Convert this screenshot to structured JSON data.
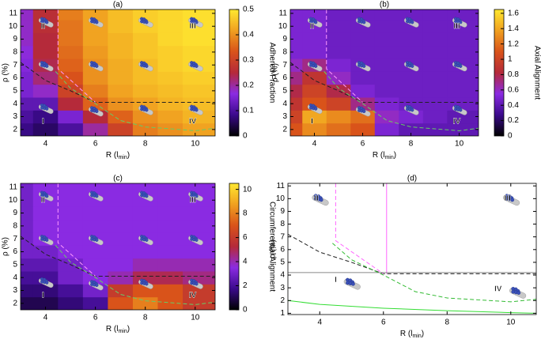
{
  "chart_data": [
    {
      "type": "heatmap",
      "title": "(a)",
      "xlabel": [
        "R (l",
        "min",
        ")"
      ],
      "ylabel": "ρ (%)",
      "colorbar_label": "Adhered Fraction",
      "colormap": [
        "#000000",
        "#3b0a8c",
        "#8a2be2",
        "#b52a3a",
        "#d9531a",
        "#f0a020",
        "#ffe830"
      ],
      "xlim": [
        3,
        10.8
      ],
      "ylim": [
        1.5,
        11.3
      ],
      "xticks": [
        4,
        6,
        8,
        10
      ],
      "yticks": [
        2,
        3,
        4,
        5,
        6,
        7,
        8,
        9,
        10,
        11
      ],
      "clim": [
        0,
        0.5
      ],
      "cticks": [
        0,
        0.1,
        0.2,
        0.3,
        0.4,
        0.5
      ],
      "xedges": [
        3,
        3.5,
        4.5,
        5.5,
        6.5,
        7.5,
        8.5,
        9.5,
        10.8
      ],
      "yedges": [
        1.5,
        2.5,
        3.5,
        4.5,
        5.5,
        6.5,
        7.5,
        8.5,
        9.5,
        10.5,
        11.3
      ],
      "values": [
        [
          0.08,
          0.06,
          0.1,
          0.2,
          0.3,
          0.38,
          0.4,
          0.42
        ],
        [
          0.1,
          0.08,
          0.15,
          0.25,
          0.35,
          0.4,
          0.42,
          0.44
        ],
        [
          0.12,
          0.12,
          0.25,
          0.35,
          0.4,
          0.42,
          0.44,
          0.45
        ],
        [
          0.15,
          0.18,
          0.3,
          0.38,
          0.42,
          0.44,
          0.45,
          0.46
        ],
        [
          0.15,
          0.22,
          0.33,
          0.4,
          0.43,
          0.45,
          0.46,
          0.47
        ],
        [
          0.16,
          0.24,
          0.35,
          0.4,
          0.43,
          0.45,
          0.47,
          0.48
        ],
        [
          0.17,
          0.25,
          0.36,
          0.41,
          0.44,
          0.46,
          0.47,
          0.48
        ],
        [
          0.18,
          0.25,
          0.37,
          0.42,
          0.44,
          0.46,
          0.48,
          0.49
        ],
        [
          0.18,
          0.26,
          0.37,
          0.42,
          0.45,
          0.47,
          0.48,
          0.49
        ],
        [
          0.18,
          0.26,
          0.38,
          0.42,
          0.45,
          0.47,
          0.48,
          0.49
        ]
      ],
      "lines": [
        {
          "color": "#222222",
          "dash": true,
          "x": [
            3,
            4,
            5,
            6,
            10.8
          ],
          "y": [
            7.2,
            5.8,
            5,
            4.1,
            4.1
          ]
        },
        {
          "color": "#ff99ff",
          "dash": true,
          "x": [
            4.5,
            4.5,
            6
          ],
          "y": [
            11.3,
            6.7,
            4.1
          ]
        },
        {
          "color": "#66cc66",
          "dash": true,
          "x": [
            4.4,
            5,
            6,
            7,
            8,
            10,
            10.8
          ],
          "y": [
            6.5,
            5.2,
            4,
            2.7,
            2.2,
            1.9,
            2.1
          ]
        }
      ],
      "annotations": [
        {
          "text": "II",
          "x": 3.9,
          "y": 10
        },
        {
          "text": "III",
          "x": 9.9,
          "y": 10
        },
        {
          "text": "I",
          "x": 3.9,
          "y": 2.6
        },
        {
          "text": "IV",
          "x": 9.9,
          "y": 2.6
        }
      ]
    },
    {
      "type": "heatmap",
      "title": "(b)",
      "xlabel": [
        "R (l",
        "min",
        ")"
      ],
      "ylabel": "ρ (%)",
      "colorbar_label": "Axial Alignment",
      "colormap": [
        "#000000",
        "#3b0a8c",
        "#8a2be2",
        "#b52a3a",
        "#d9531a",
        "#f0a020",
        "#ffe830"
      ],
      "xlim": [
        3,
        10.8
      ],
      "ylim": [
        1.5,
        11.3
      ],
      "xticks": [
        4,
        6,
        8,
        10
      ],
      "yticks": [
        2,
        3,
        4,
        5,
        6,
        7,
        8,
        9,
        10,
        11
      ],
      "clim": [
        0,
        1.65
      ],
      "cticks": [
        0,
        0.2,
        0.4,
        0.6,
        0.8,
        1,
        1.2,
        1.4,
        1.6
      ],
      "xedges": [
        3,
        3.5,
        4.5,
        5.5,
        6.5,
        7.5,
        8.5,
        9.5,
        10.8
      ],
      "yedges": [
        1.5,
        2.5,
        3.5,
        4.5,
        5.5,
        6.5,
        7.5,
        8.5,
        9.5,
        10.5,
        11.3
      ],
      "values": [
        [
          1.1,
          1.3,
          1.2,
          1.1,
          0.5,
          0.4,
          0.4,
          0.4
        ],
        [
          1.0,
          1.4,
          1.3,
          1.2,
          0.6,
          0.5,
          0.45,
          0.4
        ],
        [
          0.9,
          1.1,
          1.0,
          0.7,
          0.5,
          0.45,
          0.45,
          0.45
        ],
        [
          0.8,
          1.0,
          0.8,
          0.5,
          0.45,
          0.45,
          0.45,
          0.45
        ],
        [
          0.7,
          0.9,
          0.6,
          0.45,
          0.45,
          0.45,
          0.45,
          0.45
        ],
        [
          0.6,
          0.7,
          0.5,
          0.45,
          0.45,
          0.45,
          0.45,
          0.45
        ],
        [
          0.5,
          0.5,
          0.45,
          0.45,
          0.45,
          0.45,
          0.45,
          0.45
        ],
        [
          0.5,
          0.5,
          0.45,
          0.45,
          0.45,
          0.45,
          0.45,
          0.45
        ],
        [
          0.5,
          0.5,
          0.45,
          0.45,
          0.45,
          0.45,
          0.45,
          0.45
        ],
        [
          0.5,
          0.5,
          0.45,
          0.45,
          0.45,
          0.45,
          0.45,
          0.45
        ]
      ],
      "lines": [
        {
          "color": "#222222",
          "dash": true,
          "x": [
            3,
            4,
            5,
            6,
            10.8
          ],
          "y": [
            7.2,
            5.8,
            5,
            4.1,
            4.1
          ]
        },
        {
          "color": "#ff99ff",
          "dash": true,
          "x": [
            4.5,
            4.5,
            6
          ],
          "y": [
            11.3,
            6.7,
            4.1
          ]
        },
        {
          "color": "#66cc66",
          "dash": true,
          "x": [
            4.4,
            5,
            6,
            7,
            8,
            10,
            10.8
          ],
          "y": [
            6.5,
            5.2,
            4,
            2.7,
            2.2,
            1.9,
            2.1
          ]
        }
      ],
      "annotations": [
        {
          "text": "II",
          "x": 3.9,
          "y": 10
        },
        {
          "text": "III",
          "x": 9.9,
          "y": 10
        },
        {
          "text": "I",
          "x": 3.9,
          "y": 2.6
        },
        {
          "text": "IV",
          "x": 9.9,
          "y": 2.6
        }
      ]
    },
    {
      "type": "heatmap",
      "title": "(c)",
      "xlabel": [
        "R (l",
        "min",
        ")"
      ],
      "ylabel": "ρ (%)",
      "colorbar_label": "Circumferential Alignment",
      "colormap": [
        "#000000",
        "#3b0a8c",
        "#8a2be2",
        "#b52a3a",
        "#d9531a",
        "#f0a020",
        "#ffe830"
      ],
      "xlim": [
        3,
        10.8
      ],
      "ylim": [
        1.5,
        11.3
      ],
      "xticks": [
        4,
        6,
        8,
        10
      ],
      "yticks": [
        2,
        3,
        4,
        5,
        6,
        7,
        8,
        9,
        10,
        11
      ],
      "clim": [
        0,
        10.5
      ],
      "cticks": [
        0,
        2,
        4,
        6,
        8,
        10
      ],
      "xedges": [
        3,
        3.5,
        4.5,
        5.5,
        6.5,
        7.5,
        8.5,
        9.5,
        10.8
      ],
      "yedges": [
        1.5,
        2.5,
        3.5,
        4.5,
        5.5,
        6.5,
        7.5,
        8.5,
        9.5,
        10.5,
        11.3
      ],
      "values": [
        [
          1,
          1,
          1.5,
          2,
          7,
          8,
          7,
          6
        ],
        [
          1.5,
          1.5,
          2,
          3,
          6,
          7,
          7,
          6
        ],
        [
          2,
          2,
          3,
          3.5,
          4,
          5,
          5,
          4.5
        ],
        [
          2.5,
          2.5,
          3,
          3.5,
          3.5,
          4,
          4,
          4
        ],
        [
          3,
          3,
          3.5,
          3.5,
          3.5,
          3.5,
          3.5,
          3.5
        ],
        [
          3,
          3.5,
          3.5,
          3.5,
          3.5,
          3.5,
          3.5,
          3.5
        ],
        [
          3,
          3.5,
          3.5,
          3.5,
          3.5,
          3.5,
          3.5,
          3.5
        ],
        [
          3,
          3.5,
          3.5,
          3.5,
          3.5,
          3.5,
          3.5,
          3.5
        ],
        [
          3,
          3.5,
          3.5,
          3.5,
          3.5,
          3.5,
          3.5,
          3.5
        ],
        [
          3,
          3.5,
          3.5,
          3.5,
          3.5,
          3.5,
          3.5,
          3.5
        ]
      ],
      "lines": [
        {
          "color": "#222222",
          "dash": true,
          "x": [
            3,
            4,
            5,
            6,
            10.8
          ],
          "y": [
            7.2,
            5.8,
            5,
            4.1,
            4.1
          ]
        },
        {
          "color": "#ff99ff",
          "dash": true,
          "x": [
            4.5,
            4.5,
            6
          ],
          "y": [
            11.3,
            6.7,
            4.1
          ]
        },
        {
          "color": "#66cc66",
          "dash": true,
          "x": [
            4.4,
            5,
            6,
            7,
            8,
            10,
            10.8
          ],
          "y": [
            6.5,
            5.2,
            4,
            2.7,
            2.2,
            1.9,
            2.1
          ]
        }
      ],
      "annotations": [
        {
          "text": "II",
          "x": 3.9,
          "y": 10
        },
        {
          "text": "III",
          "x": 9.9,
          "y": 10
        },
        {
          "text": "I",
          "x": 3.9,
          "y": 2.6
        },
        {
          "text": "IV",
          "x": 9.9,
          "y": 2.6
        }
      ]
    },
    {
      "type": "line",
      "title": "(d)",
      "xlabel": [
        "R (l",
        "min",
        ")"
      ],
      "ylabel": "ρ (%)",
      "xlim": [
        3,
        10.8
      ],
      "ylim": [
        0.9,
        11.2
      ],
      "xticks": [
        4,
        6,
        8,
        10
      ],
      "yticks": [
        1,
        2,
        3,
        4,
        5,
        6,
        7,
        8,
        9,
        10,
        11
      ],
      "lines": [
        {
          "color": "#222222",
          "dash": true,
          "x": [
            3,
            4,
            5,
            6,
            10.8
          ],
          "y": [
            7.2,
            5.8,
            5,
            4.1,
            4.1
          ]
        },
        {
          "color": "#ff66ff",
          "dash": true,
          "x": [
            4.5,
            4.5,
            6
          ],
          "y": [
            11.2,
            6.7,
            4.1
          ]
        },
        {
          "color": "#ff66ff",
          "dash": false,
          "x": [
            6.1,
            6.1
          ],
          "y": [
            11.2,
            4.1
          ]
        },
        {
          "color": "#888888",
          "dash": false,
          "x": [
            3,
            10.8
          ],
          "y": [
            4.2,
            4.2
          ]
        },
        {
          "color": "#33bb33",
          "dash": true,
          "x": [
            4.4,
            5,
            6,
            7,
            8,
            10,
            10.8
          ],
          "y": [
            6.5,
            5.2,
            4,
            2.7,
            2.2,
            1.9,
            2.1
          ]
        },
        {
          "color": "#33dd33",
          "dash": false,
          "x": [
            3,
            4,
            6,
            8,
            10,
            10.8
          ],
          "y": [
            2.0,
            1.7,
            1.4,
            1.2,
            1.05,
            1.0
          ]
        }
      ],
      "annotations": [
        {
          "text": "II",
          "x": 3.9,
          "y": 10
        },
        {
          "text": "III",
          "x": 9.9,
          "y": 10
        },
        {
          "text": "I",
          "x": 4.5,
          "y": 3.6
        },
        {
          "text": "IV",
          "x": 9.6,
          "y": 2.9
        }
      ]
    }
  ]
}
